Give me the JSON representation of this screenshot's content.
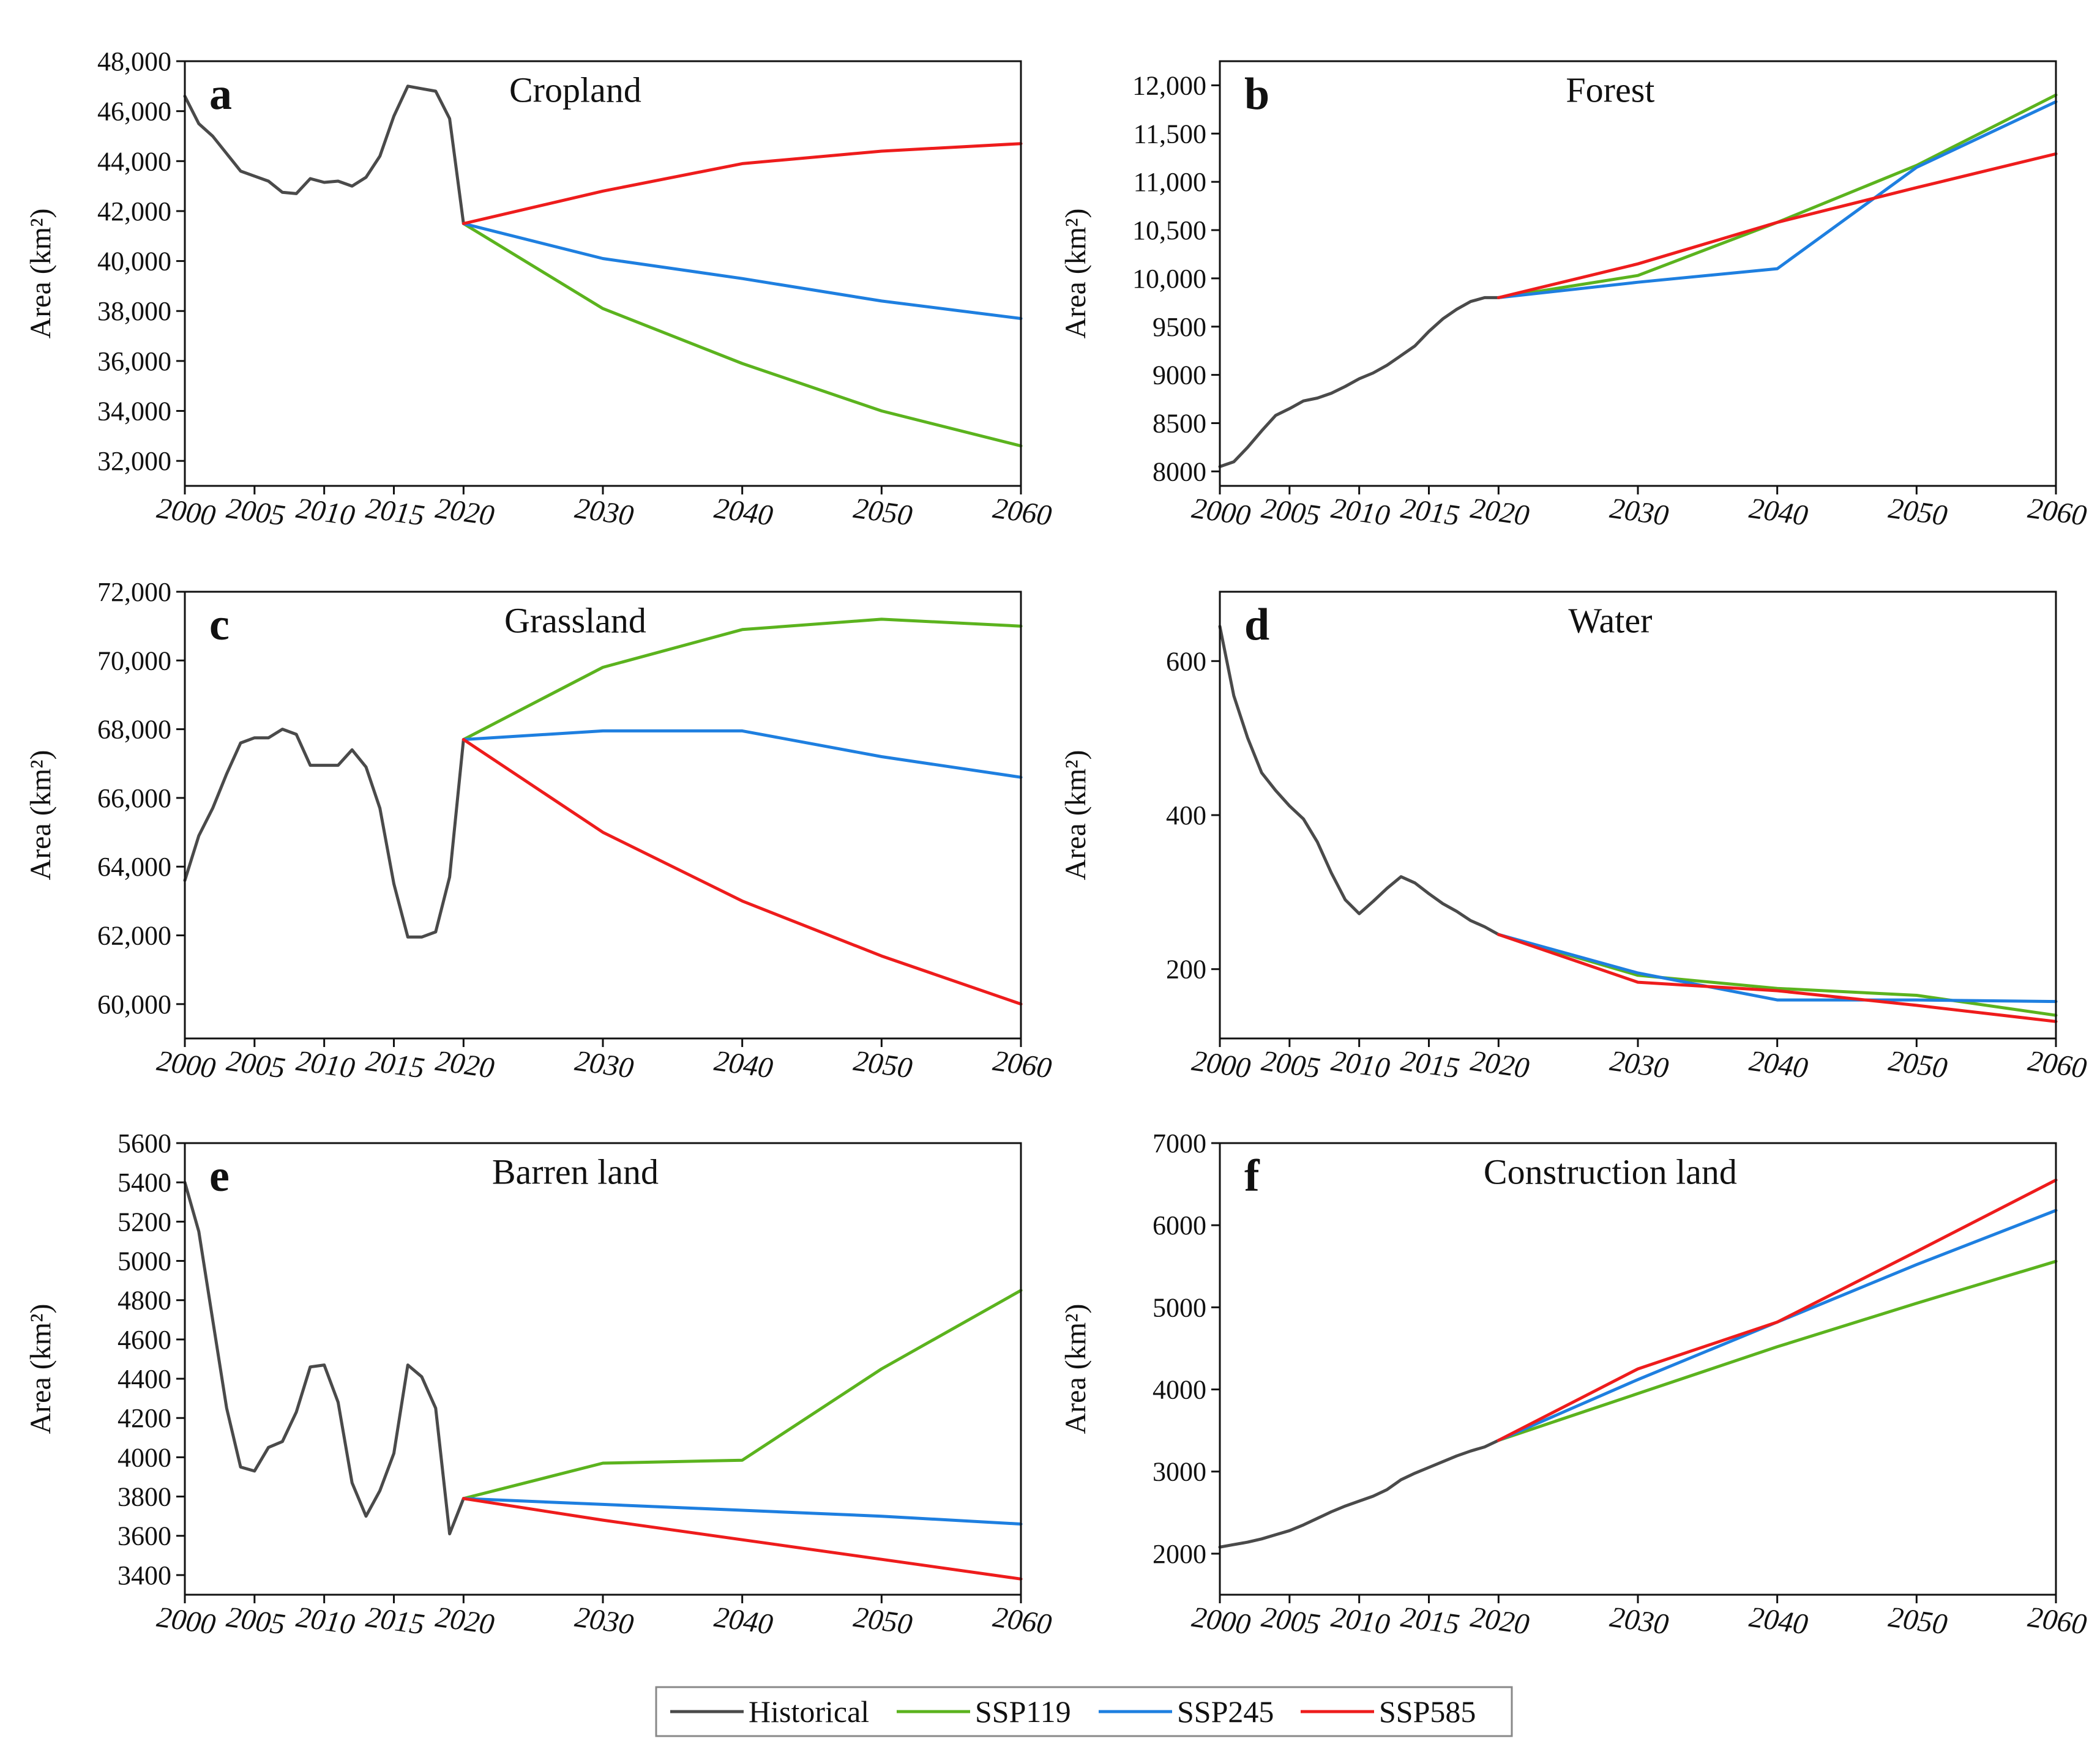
{
  "legend": [
    {
      "name": "Historical",
      "color": "#4a4a4a"
    },
    {
      "name": "SSP119",
      "color": "#5bb31e"
    },
    {
      "name": "SSP245",
      "color": "#1e7fe0"
    },
    {
      "name": "SSP585",
      "color": "#ee1c1c"
    }
  ],
  "chart_data": [
    {
      "type": "line",
      "letter": "a",
      "title": "Cropland",
      "ylabel": "Area (km²)",
      "xlim": [
        2000,
        2060
      ],
      "ylim": [
        31000,
        48000
      ],
      "yticks": [
        32000,
        34000,
        36000,
        38000,
        40000,
        42000,
        44000,
        46000,
        48000
      ],
      "ytick_labels": [
        "32,000",
        "34,000",
        "36,000",
        "38,000",
        "40,000",
        "42,000",
        "44,000",
        "46,000",
        "48,000"
      ],
      "xticks": [
        2000,
        2005,
        2010,
        2015,
        2020,
        2030,
        2040,
        2050,
        2060
      ],
      "xtick_labels": [
        "2000",
        "2005",
        "2010",
        "2015",
        "2020",
        "2030",
        "2040",
        "2050",
        "2060"
      ],
      "historical": {
        "x": [
          2000,
          2001,
          2002,
          2003,
          2004,
          2005,
          2006,
          2007,
          2008,
          2009,
          2010,
          2011,
          2012,
          2013,
          2014,
          2015,
          2016,
          2017,
          2018,
          2019,
          2020
        ],
        "y": [
          46600,
          45500,
          45000,
          44300,
          43600,
          43400,
          43200,
          42750,
          42700,
          43300,
          43150,
          43200,
          43000,
          43350,
          44200,
          45800,
          47000,
          46900,
          46800,
          45700,
          41500
        ]
      },
      "series": [
        {
          "name": "SSP119",
          "x": [
            2020,
            2030,
            2040,
            2050,
            2060
          ],
          "y": [
            41500,
            38100,
            35900,
            34000,
            32600
          ]
        },
        {
          "name": "SSP245",
          "x": [
            2020,
            2030,
            2040,
            2050,
            2060
          ],
          "y": [
            41500,
            40100,
            39300,
            38400,
            37700
          ]
        },
        {
          "name": "SSP585",
          "x": [
            2020,
            2030,
            2040,
            2050,
            2060
          ],
          "y": [
            41500,
            42800,
            43900,
            44400,
            44700
          ]
        }
      ]
    },
    {
      "type": "line",
      "letter": "b",
      "title": "Forest",
      "ylabel": "Area (km²)",
      "xlim": [
        2000,
        2060
      ],
      "ylim": [
        7850,
        12250
      ],
      "yticks": [
        8000,
        8500,
        9000,
        9500,
        10000,
        10500,
        11000,
        11500,
        12000
      ],
      "ytick_labels": [
        "8000",
        "8500",
        "9000",
        "9500",
        "10,000",
        "10,500",
        "11,000",
        "11,500",
        "12,000"
      ],
      "xticks": [
        2000,
        2005,
        2010,
        2015,
        2020,
        2030,
        2040,
        2050,
        2060
      ],
      "xtick_labels": [
        "2000",
        "2005",
        "2010",
        "2015",
        "2020",
        "2030",
        "2040",
        "2050",
        "2060"
      ],
      "historical": {
        "x": [
          2000,
          2001,
          2002,
          2003,
          2004,
          2005,
          2006,
          2007,
          2008,
          2009,
          2010,
          2011,
          2012,
          2013,
          2014,
          2015,
          2016,
          2017,
          2018,
          2019,
          2020
        ],
        "y": [
          8050,
          8100,
          8250,
          8420,
          8580,
          8650,
          8730,
          8760,
          8810,
          8880,
          8960,
          9020,
          9100,
          9200,
          9300,
          9450,
          9580,
          9680,
          9760,
          9800,
          9800
        ]
      },
      "series": [
        {
          "name": "SSP119",
          "x": [
            2020,
            2030,
            2040,
            2050,
            2060
          ],
          "y": [
            9800,
            10030,
            10580,
            11170,
            11900
          ]
        },
        {
          "name": "SSP245",
          "x": [
            2020,
            2030,
            2040,
            2050,
            2060
          ],
          "y": [
            9800,
            9960,
            10100,
            11150,
            11830
          ]
        },
        {
          "name": "SSP585",
          "x": [
            2020,
            2030,
            2040,
            2050,
            2060
          ],
          "y": [
            9800,
            10150,
            10580,
            10940,
            11290
          ]
        }
      ]
    },
    {
      "type": "line",
      "letter": "c",
      "title": "Grassland",
      "ylabel": "Area (km²)",
      "xlim": [
        2000,
        2060
      ],
      "ylim": [
        59000,
        72000
      ],
      "yticks": [
        60000,
        62000,
        64000,
        66000,
        68000,
        70000,
        72000
      ],
      "ytick_labels": [
        "60,000",
        "62,000",
        "64,000",
        "66,000",
        "68,000",
        "70,000",
        "72,000"
      ],
      "xticks": [
        2000,
        2005,
        2010,
        2015,
        2020,
        2030,
        2040,
        2050,
        2060
      ],
      "xtick_labels": [
        "2000",
        "2005",
        "2010",
        "2015",
        "2020",
        "2030",
        "2040",
        "2050",
        "2060"
      ],
      "historical": {
        "x": [
          2000,
          2001,
          2002,
          2003,
          2004,
          2005,
          2006,
          2007,
          2008,
          2009,
          2010,
          2011,
          2012,
          2013,
          2014,
          2015,
          2016,
          2017,
          2018,
          2019,
          2020
        ],
        "y": [
          63600,
          64900,
          65700,
          66700,
          67600,
          67750,
          67750,
          68000,
          67850,
          66950,
          66950,
          66950,
          67400,
          66900,
          65700,
          63500,
          61950,
          61950,
          62100,
          63700,
          67700
        ]
      },
      "series": [
        {
          "name": "SSP119",
          "x": [
            2020,
            2030,
            2040,
            2050,
            2060
          ],
          "y": [
            67700,
            69800,
            70900,
            71200,
            71000
          ]
        },
        {
          "name": "SSP245",
          "x": [
            2020,
            2030,
            2040,
            2050,
            2060
          ],
          "y": [
            67700,
            67950,
            67950,
            67200,
            66600
          ]
        },
        {
          "name": "SSP585",
          "x": [
            2020,
            2030,
            2040,
            2050,
            2060
          ],
          "y": [
            67700,
            65000,
            63000,
            61400,
            60000
          ]
        }
      ]
    },
    {
      "type": "line",
      "letter": "d",
      "title": "Water",
      "ylabel": "Area (km²)",
      "xlim": [
        2000,
        2060
      ],
      "ylim": [
        110,
        690
      ],
      "yticks": [
        200,
        400,
        600
      ],
      "ytick_labels": [
        "200",
        "400",
        "600"
      ],
      "xticks": [
        2000,
        2005,
        2010,
        2015,
        2020,
        2030,
        2040,
        2050,
        2060
      ],
      "xtick_labels": [
        "2000",
        "2005",
        "2010",
        "2015",
        "2020",
        "2030",
        "2040",
        "2050",
        "2060"
      ],
      "historical": {
        "x": [
          2000,
          2001,
          2002,
          2003,
          2004,
          2005,
          2006,
          2007,
          2008,
          2009,
          2010,
          2011,
          2012,
          2013,
          2014,
          2015,
          2016,
          2017,
          2018,
          2019,
          2020
        ],
        "y": [
          645,
          555,
          500,
          455,
          432,
          412,
          395,
          365,
          325,
          290,
          272,
          288,
          305,
          320,
          312,
          298,
          285,
          275,
          263,
          255,
          245
        ]
      },
      "series": [
        {
          "name": "SSP119",
          "x": [
            2020,
            2030,
            2040,
            2050,
            2060
          ],
          "y": [
            245,
            192,
            175,
            166,
            140
          ]
        },
        {
          "name": "SSP245",
          "x": [
            2020,
            2030,
            2040,
            2050,
            2060
          ],
          "y": [
            245,
            195,
            160,
            160,
            158
          ]
        },
        {
          "name": "SSP585",
          "x": [
            2020,
            2030,
            2040,
            2050,
            2060
          ],
          "y": [
            245,
            183,
            172,
            153,
            132
          ]
        }
      ]
    },
    {
      "type": "line",
      "letter": "e",
      "title": "Barren land",
      "ylabel": "Area (km²)",
      "xlim": [
        2000,
        2060
      ],
      "ylim": [
        3300,
        5600
      ],
      "yticks": [
        3400,
        3600,
        3800,
        4000,
        4200,
        4400,
        4600,
        4800,
        5000,
        5200,
        5400,
        5600
      ],
      "ytick_labels": [
        "3400",
        "3600",
        "3800",
        "4000",
        "4200",
        "4400",
        "4600",
        "4800",
        "5000",
        "5200",
        "5400",
        "5600"
      ],
      "xticks": [
        2000,
        2005,
        2010,
        2015,
        2020,
        2030,
        2040,
        2050,
        2060
      ],
      "xtick_labels": [
        "2000",
        "2005",
        "2010",
        "2015",
        "2020",
        "2030",
        "2040",
        "2050",
        "2060"
      ],
      "historical": {
        "x": [
          2000,
          2001,
          2002,
          2003,
          2004,
          2005,
          2006,
          2007,
          2008,
          2009,
          2010,
          2011,
          2012,
          2013,
          2014,
          2015,
          2016,
          2017,
          2018,
          2019,
          2020
        ],
        "y": [
          5400,
          5150,
          4700,
          4250,
          3950,
          3930,
          4050,
          4080,
          4230,
          4460,
          4470,
          4280,
          3870,
          3700,
          3830,
          4020,
          4470,
          4410,
          4250,
          3610,
          3790
        ]
      },
      "series": [
        {
          "name": "SSP119",
          "x": [
            2020,
            2030,
            2040,
            2050,
            2060
          ],
          "y": [
            3790,
            3970,
            3985,
            4450,
            4850
          ]
        },
        {
          "name": "SSP245",
          "x": [
            2020,
            2030,
            2040,
            2050,
            2060
          ],
          "y": [
            3790,
            3760,
            3730,
            3700,
            3660
          ]
        },
        {
          "name": "SSP585",
          "x": [
            2020,
            2030,
            2040,
            2050,
            2060
          ],
          "y": [
            3790,
            3680,
            3580,
            3480,
            3380
          ]
        }
      ]
    },
    {
      "type": "line",
      "letter": "f",
      "title": "Construction land",
      "ylabel": "Area (km²)",
      "xlim": [
        2000,
        2060
      ],
      "ylim": [
        1500,
        7000
      ],
      "yticks": [
        2000,
        3000,
        4000,
        5000,
        6000,
        7000
      ],
      "ytick_labels": [
        "2000",
        "3000",
        "4000",
        "5000",
        "6000",
        "7000"
      ],
      "xticks": [
        2000,
        2005,
        2010,
        2015,
        2020,
        2030,
        2040,
        2050,
        2060
      ],
      "xtick_labels": [
        "2000",
        "2005",
        "2010",
        "2015",
        "2020",
        "2030",
        "2040",
        "2050",
        "2060"
      ],
      "historical": {
        "x": [
          2000,
          2001,
          2002,
          2003,
          2004,
          2005,
          2006,
          2007,
          2008,
          2009,
          2010,
          2011,
          2012,
          2013,
          2014,
          2015,
          2016,
          2017,
          2018,
          2019,
          2020
        ],
        "y": [
          2080,
          2110,
          2140,
          2180,
          2230,
          2280,
          2350,
          2430,
          2510,
          2580,
          2640,
          2700,
          2780,
          2900,
          2980,
          3050,
          3120,
          3190,
          3250,
          3300,
          3380
        ]
      },
      "series": [
        {
          "name": "SSP119",
          "x": [
            2020,
            2030,
            2040,
            2050,
            2060
          ],
          "y": [
            3380,
            3950,
            4520,
            5050,
            5560
          ]
        },
        {
          "name": "SSP245",
          "x": [
            2020,
            2030,
            2040,
            2050,
            2060
          ],
          "y": [
            3380,
            4120,
            4820,
            5520,
            6180
          ]
        },
        {
          "name": "SSP585",
          "x": [
            2020,
            2030,
            2040,
            2050,
            2060
          ],
          "y": [
            3380,
            4250,
            4820,
            5680,
            6550
          ]
        }
      ]
    }
  ]
}
